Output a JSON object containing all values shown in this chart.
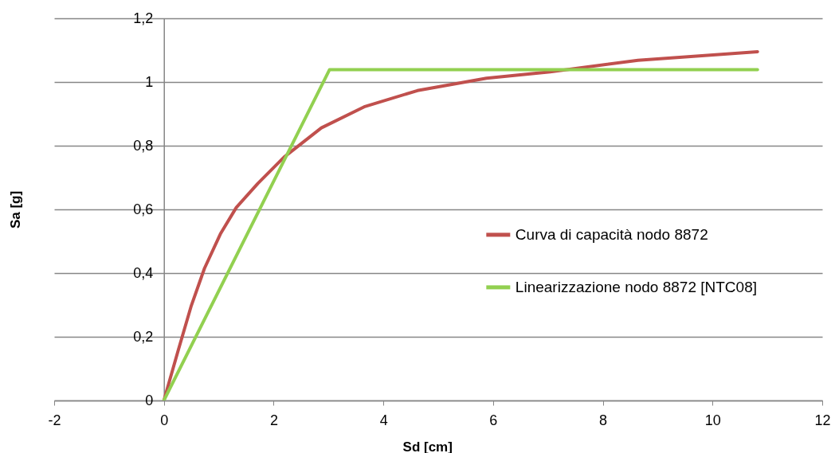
{
  "chart_data": {
    "type": "line",
    "xlabel": "Sd [cm]",
    "ylabel": "Sa [g]",
    "xlim": [
      -2,
      12
    ],
    "xticks": [
      -2,
      0,
      2,
      4,
      6,
      8,
      10,
      12
    ],
    "ylim": [
      0,
      1.2
    ],
    "yticks": [
      {
        "value": 0,
        "label": "0"
      },
      {
        "value": 0.2,
        "label": "0,2"
      },
      {
        "value": 0.4,
        "label": "0,4"
      },
      {
        "value": 0.6,
        "label": "0,6"
      },
      {
        "value": 0.8,
        "label": "0,8"
      },
      {
        "value": 1,
        "label": "1"
      },
      {
        "value": 1.2,
        "label": "1,2"
      }
    ],
    "grid": "y",
    "legend": "right",
    "marker": "none",
    "line_style": "solid",
    "series": [
      {
        "name": "Curva di capacità nodo 8872",
        "color": "#c0504d",
        "x": [
          0,
          0.26,
          0.5,
          0.74,
          1.03,
          1.32,
          1.71,
          2.19,
          2.87,
          3.65,
          4.62,
          5.88,
          7.04,
          8.64,
          10.82
        ],
        "values": [
          0,
          0.157,
          0.298,
          0.415,
          0.523,
          0.606,
          0.681,
          0.764,
          0.856,
          0.922,
          0.973,
          1.012,
          1.032,
          1.068,
          1.095
        ]
      },
      {
        "name": "Linearizzazione nodo 8872 [NTC08]",
        "color": "#92d050",
        "x": [
          0,
          3.02,
          10.82
        ],
        "values": [
          0,
          1.039,
          1.039
        ]
      }
    ]
  }
}
